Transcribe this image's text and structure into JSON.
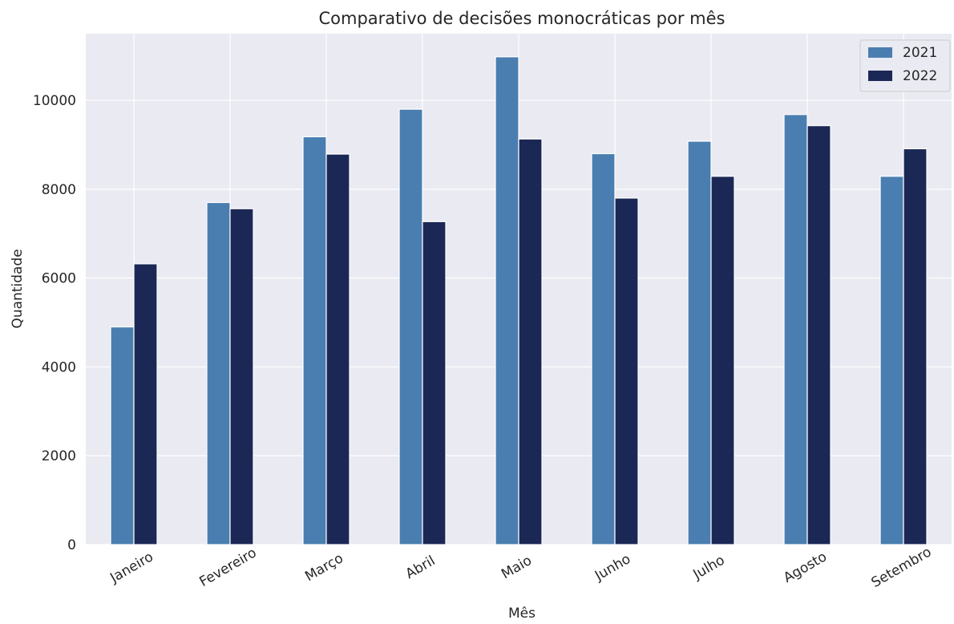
{
  "chart_data": {
    "type": "bar",
    "title": "Comparativo de decisões monocráticas por mês",
    "xlabel": "Mês",
    "ylabel": "Quantidade",
    "categories": [
      "Janeiro",
      "Fevereiro",
      "Março",
      "Abril",
      "Maio",
      "Junho",
      "Julho",
      "Agosto",
      "Setembro"
    ],
    "series": [
      {
        "name": "2021",
        "color": "#4a7eb0",
        "values": [
          4900,
          7700,
          9180,
          9800,
          10980,
          8800,
          9080,
          9680,
          8290
        ]
      },
      {
        "name": "2022",
        "color": "#1b2855",
        "values": [
          6320,
          7560,
          8790,
          7270,
          9130,
          7800,
          8290,
          9430,
          8910
        ]
      }
    ],
    "ylim": [
      0,
      11500
    ],
    "yticks": [
      0,
      2000,
      4000,
      6000,
      8000,
      10000
    ],
    "ytick_labels": [
      "0",
      "2000",
      "4000",
      "6000",
      "8000",
      "10000"
    ],
    "grid": true,
    "legend_position": "top-right",
    "background_color": "#eaeaf2"
  }
}
